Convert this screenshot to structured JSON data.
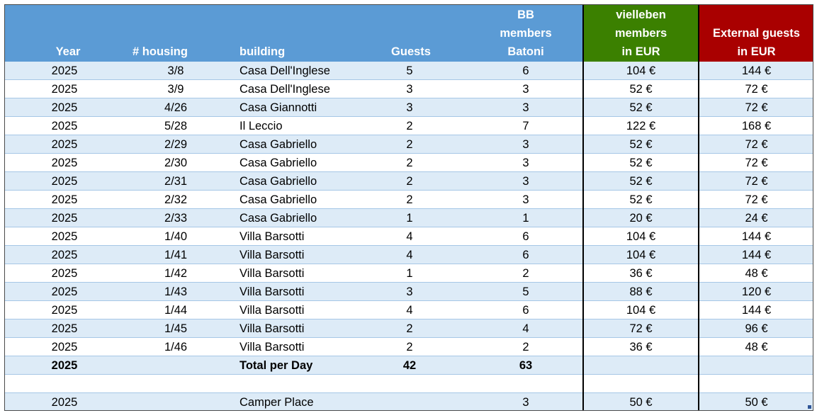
{
  "header": {
    "year": "Year",
    "housing": "# housing",
    "building": "building",
    "guests": "Guests",
    "bb": [
      "BB",
      "members",
      "Batoni"
    ],
    "vielleben": [
      "vielleben",
      "members",
      "in EUR"
    ],
    "external": [
      "External guests",
      "in EUR"
    ]
  },
  "colors": {
    "header_blue": "#5b9bd5",
    "header_green": "#3b8000",
    "header_red": "#a90000",
    "band": "#ddebf7"
  },
  "rows": [
    {
      "year": "2025",
      "housing": "3/8",
      "building": "Casa Dell'Inglese",
      "guests": "5",
      "bb": "6",
      "viel": "104 €",
      "ext": "144 €"
    },
    {
      "year": "2025",
      "housing": "3/9",
      "building": "Casa Dell'Inglese",
      "guests": "3",
      "bb": "3",
      "viel": "52 €",
      "ext": "72 €"
    },
    {
      "year": "2025",
      "housing": "4/26",
      "building": "Casa Giannotti",
      "guests": "3",
      "bb": "3",
      "viel": "52 €",
      "ext": "72 €"
    },
    {
      "year": "2025",
      "housing": "5/28",
      "building": "Il Leccio",
      "guests": "2",
      "bb": "7",
      "viel": "122 €",
      "ext": "168 €"
    },
    {
      "year": "2025",
      "housing": "2/29",
      "building": "Casa Gabriello",
      "guests": "2",
      "bb": "3",
      "viel": "52 €",
      "ext": "72 €"
    },
    {
      "year": "2025",
      "housing": "2/30",
      "building": "Casa Gabriello",
      "guests": "2",
      "bb": "3",
      "viel": "52 €",
      "ext": "72 €"
    },
    {
      "year": "2025",
      "housing": "2/31",
      "building": "Casa Gabriello",
      "guests": "2",
      "bb": "3",
      "viel": "52 €",
      "ext": "72 €"
    },
    {
      "year": "2025",
      "housing": "2/32",
      "building": "Casa Gabriello",
      "guests": "2",
      "bb": "3",
      "viel": "52 €",
      "ext": "72 €"
    },
    {
      "year": "2025",
      "housing": "2/33",
      "building": "Casa Gabriello",
      "guests": "1",
      "bb": "1",
      "viel": "20 €",
      "ext": "24 €"
    },
    {
      "year": "2025",
      "housing": "1/40",
      "building": "Villa Barsotti",
      "guests": "4",
      "bb": "6",
      "viel": "104 €",
      "ext": "144 €"
    },
    {
      "year": "2025",
      "housing": "1/41",
      "building": "Villa Barsotti",
      "guests": "4",
      "bb": "6",
      "viel": "104 €",
      "ext": "144 €"
    },
    {
      "year": "2025",
      "housing": "1/42",
      "building": "Villa Barsotti",
      "guests": "1",
      "bb": "2",
      "viel": "36 €",
      "ext": "48 €"
    },
    {
      "year": "2025",
      "housing": "1/43",
      "building": "Villa Barsotti",
      "guests": "3",
      "bb": "5",
      "viel": "88 €",
      "ext": "120 €"
    },
    {
      "year": "2025",
      "housing": "1/44",
      "building": "Villa Barsotti",
      "guests": "4",
      "bb": "6",
      "viel": "104 €",
      "ext": "144 €"
    },
    {
      "year": "2025",
      "housing": "1/45",
      "building": "Villa Barsotti",
      "guests": "2",
      "bb": "4",
      "viel": "72 €",
      "ext": "96 €"
    },
    {
      "year": "2025",
      "housing": "1/46",
      "building": "Villa Barsotti",
      "guests": "2",
      "bb": "2",
      "viel": "36 €",
      "ext": "48 €"
    }
  ],
  "total": {
    "year": "2025",
    "label": "Total per Day",
    "guests": "42",
    "bb": "63"
  },
  "camper": {
    "year": "2025",
    "building": "Camper Place",
    "bb": "3",
    "viel": "50 €",
    "ext": "50 €"
  }
}
